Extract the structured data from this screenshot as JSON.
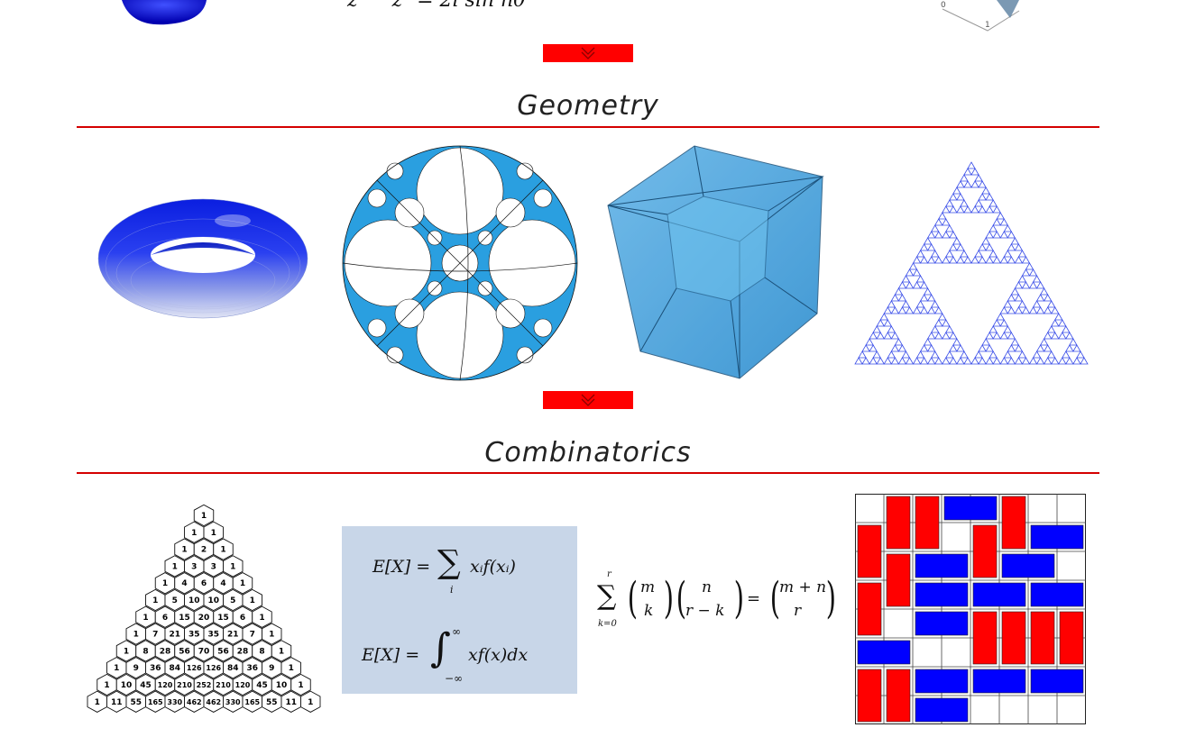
{
  "sections": {
    "geometry": {
      "title": "Geometry"
    },
    "combinatorics": {
      "title": "Combinatorics"
    }
  },
  "top_strip": {
    "formula_fragment_left": "z",
    "formula_fragment_main": "zⁿ = 2i sin nθ",
    "plot_tick_0": "0",
    "plot_tick_1": "1"
  },
  "combinatorics": {
    "pascal_rows": [
      [
        1
      ],
      [
        1,
        1
      ],
      [
        1,
        2,
        1
      ],
      [
        1,
        3,
        3,
        1
      ],
      [
        1,
        4,
        6,
        4,
        1
      ],
      [
        1,
        5,
        10,
        10,
        5,
        1
      ],
      [
        1,
        6,
        15,
        20,
        15,
        6,
        1
      ],
      [
        1,
        7,
        21,
        35,
        35,
        21,
        7,
        1
      ],
      [
        1,
        8,
        28,
        56,
        70,
        56,
        28,
        8,
        1
      ],
      [
        1,
        9,
        36,
        84,
        126,
        126,
        84,
        36,
        9,
        1
      ],
      [
        1,
        10,
        45,
        120,
        210,
        252,
        210,
        120,
        45,
        10,
        1
      ],
      [
        1,
        11,
        55,
        165,
        330,
        462,
        462,
        330,
        165,
        55,
        11,
        1
      ]
    ],
    "expectation": {
      "lhs": "E[X] =",
      "sum_sym": "∑",
      "sum_index": "i",
      "sum_term": "xᵢf(xᵢ)",
      "int_sym": "∫",
      "int_upper": "∞",
      "int_lower": "−∞",
      "int_term": "xf(x)dx"
    },
    "vandermonde": {
      "sum_sym": "∑",
      "upper": "r",
      "lower": "k=0",
      "b1_top": "m",
      "b1_bot": "k",
      "b2_top": "n",
      "b2_bot": "r − k",
      "eq": "=",
      "b3_top": "m + n",
      "b3_bot": "r"
    }
  },
  "colors": {
    "accent": "#ff0000",
    "rule": "#d40000",
    "domino_red": "#ff0000",
    "domino_blue": "#0000ff",
    "box": "#c8d6e8"
  },
  "icons": {
    "expand": "double-chevron-down-icon"
  }
}
